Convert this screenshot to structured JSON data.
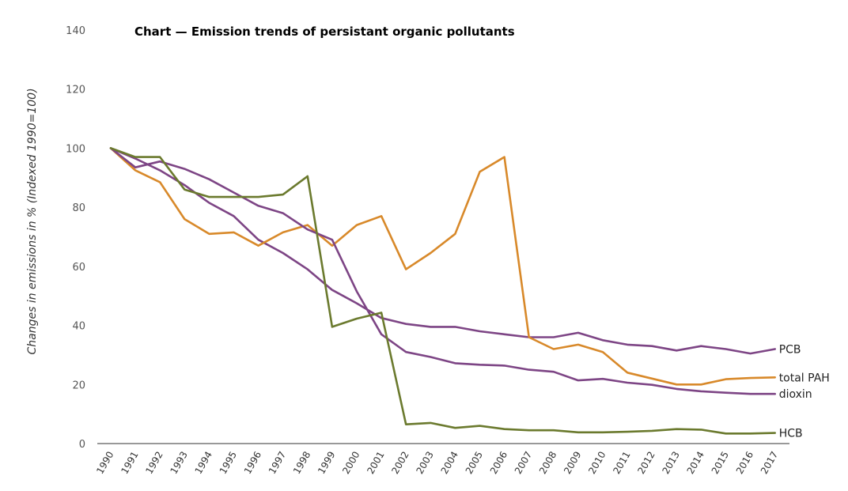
{
  "chart_data": {
    "type": "line",
    "title": "Chart — Emission trends of persistant organic pollutants",
    "xlabel": "",
    "ylabel": "Changes in emissions in % (Indexed 1990=100)",
    "ylim": [
      0,
      140
    ],
    "yticks": [
      0,
      20,
      40,
      60,
      80,
      100,
      120,
      140
    ],
    "grid": false,
    "legend": "inline-right",
    "categories": [
      "1990",
      "1991",
      "1992",
      "1993",
      "1994",
      "1995",
      "1996",
      "1997",
      "1998",
      "1999",
      "2000",
      "2001",
      "2002",
      "2003",
      "2004",
      "2005",
      "2006",
      "2007",
      "2008",
      "2009",
      "2010",
      "2011",
      "2012",
      "2013",
      "2014",
      "2015",
      "2016",
      "2017"
    ],
    "series": [
      {
        "name": "PCB",
        "color": "#7d4585",
        "values": [
          100,
          96.5,
          92.5,
          87.5,
          81.5,
          77,
          69,
          64.5,
          59,
          52,
          47.5,
          42.5,
          40.5,
          39.5,
          39.5,
          38,
          37,
          36,
          36,
          37.5,
          35,
          33.5,
          33,
          31.5,
          33,
          32,
          30.5,
          32
        ]
      },
      {
        "name": "total PAH",
        "color": "#d8892a",
        "values": [
          100,
          92.5,
          88.5,
          76,
          71,
          71.5,
          67,
          71.5,
          74,
          67,
          74,
          77,
          59,
          64.5,
          71,
          92,
          97,
          36,
          32,
          33.5,
          31,
          24,
          22,
          20,
          20,
          21.8,
          22.2,
          22.4
        ]
      },
      {
        "name": "dioxin",
        "color": "#7d4585",
        "values": [
          100,
          93.5,
          95.5,
          93,
          89.5,
          85,
          80.5,
          78,
          72.5,
          69,
          51.5,
          37,
          31,
          29.3,
          27.2,
          26.7,
          26.4,
          25,
          24.3,
          21.4,
          21.9,
          20.6,
          19.9,
          18.5,
          17.7,
          17.2,
          16.8,
          16.8
        ]
      },
      {
        "name": "HCB",
        "color": "#6b7a2e",
        "values": [
          100,
          97,
          97,
          86,
          83.5,
          83.5,
          83.5,
          84.3,
          90.5,
          39.5,
          42.3,
          44.3,
          6.5,
          7,
          5.3,
          6,
          4.9,
          4.5,
          4.5,
          3.8,
          3.8,
          4,
          4.3,
          4.9,
          4.7,
          3.4,
          3.4,
          3.6
        ]
      }
    ]
  }
}
